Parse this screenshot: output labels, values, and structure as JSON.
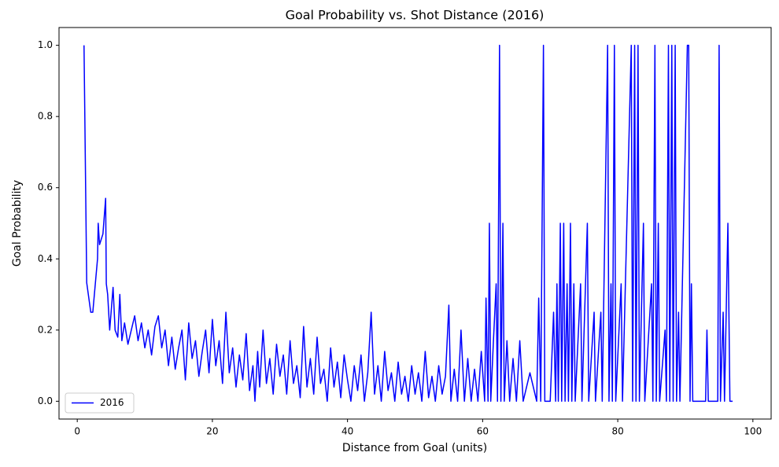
{
  "chart_data": {
    "type": "line",
    "title": "Goal Probability vs. Shot Distance (2016)",
    "xlabel": "Distance from Goal (units)",
    "ylabel": "Goal Probability",
    "xlim": [
      -2.7,
      102.7
    ],
    "ylim": [
      -0.05,
      1.05
    ],
    "xticks": [
      0,
      20,
      40,
      60,
      80,
      100
    ],
    "yticks": [
      {
        "value": 0,
        "label": "0.0"
      },
      0.2,
      0.4,
      0.6,
      0.8,
      {
        "value": 1,
        "label": "1.0"
      }
    ],
    "legend": "lower left",
    "grid": false,
    "x": [
      1,
      1.4,
      2,
      2.3,
      3,
      3.1,
      3.3,
      3.8,
      4.2,
      4.3,
      4.5,
      4.8,
      5.3,
      5.6,
      6,
      6.3,
      6.6,
      7,
      7.5,
      8,
      8.5,
      9,
      9.5,
      10,
      10.5,
      11,
      11.5,
      12,
      12.5,
      13,
      13.5,
      14,
      14.5,
      15,
      15.5,
      16,
      16.5,
      17,
      17.5,
      18,
      18.5,
      19,
      19.5,
      20,
      20.5,
      21,
      21.5,
      22,
      22.5,
      23,
      23.5,
      24,
      24.5,
      25,
      25.5,
      26,
      26.3,
      26.7,
      27,
      27.5,
      28,
      28.5,
      29,
      29.5,
      30,
      30.5,
      31,
      31.5,
      32,
      32.5,
      33,
      33.5,
      34,
      34.5,
      35,
      35.5,
      36,
      36.5,
      37,
      37.5,
      38,
      38.5,
      39,
      39.5,
      40,
      40.5,
      41,
      41.5,
      42,
      42.5,
      43,
      43.5,
      44,
      44.5,
      45,
      45.5,
      46,
      46.5,
      47,
      47.5,
      48,
      48.5,
      49,
      49.5,
      50,
      50.5,
      51,
      51.5,
      52,
      52.5,
      53,
      53.5,
      54,
      54.5,
      55,
      55.3,
      55.8,
      56.3,
      56.8,
      57.3,
      57.8,
      58.3,
      58.8,
      59.3,
      59.8,
      60.3,
      60.5,
      60.8,
      61,
      61.2,
      61.6,
      62,
      62.2,
      62.5,
      62.7,
      63,
      63.2,
      63.6,
      64,
      64.5,
      65,
      65.5,
      66,
      67,
      68,
      68.3,
      68.6,
      69,
      69.2,
      70,
      70.5,
      70.8,
      71,
      71.2,
      71.5,
      71.7,
      72,
      72.2,
      72.5,
      72.7,
      73,
      73.2,
      73.5,
      73.7,
      74.5,
      74.7,
      75.5,
      75.7,
      76.5,
      76.7,
      77.5,
      77.7,
      78.5,
      78.7,
      79,
      79.2,
      79.5,
      79.7,
      80.5,
      80.7,
      82,
      82.2,
      82.5,
      82.7,
      83,
      83.2,
      83.8,
      84,
      85,
      85.2,
      85.5,
      85.7,
      86,
      86.2,
      87,
      87.2,
      87.5,
      87.7,
      88,
      88.2,
      88.5,
      88.7,
      89,
      89.2,
      90.3,
      90.5,
      90.7,
      90.9,
      91.1,
      93,
      93.2,
      93.4,
      94.8,
      95,
      95.2,
      95.6,
      95.8,
      96.3,
      96.6,
      97
    ],
    "series": [
      {
        "name": "2016",
        "color": "#0000ff",
        "values": [
          1,
          0.333,
          0.25,
          0.25,
          0.4,
          0.5,
          0.44,
          0.47,
          0.57,
          0.33,
          0.3,
          0.2,
          0.32,
          0.2,
          0.18,
          0.3,
          0.17,
          0.22,
          0.16,
          0.2,
          0.24,
          0.17,
          0.22,
          0.15,
          0.2,
          0.13,
          0.21,
          0.24,
          0.15,
          0.2,
          0.1,
          0.18,
          0.09,
          0.15,
          0.2,
          0.06,
          0.22,
          0.12,
          0.17,
          0.07,
          0.14,
          0.2,
          0.08,
          0.23,
          0.1,
          0.17,
          0.05,
          0.25,
          0.08,
          0.15,
          0.04,
          0.13,
          0.06,
          0.19,
          0.03,
          0.1,
          0,
          0.14,
          0.04,
          0.2,
          0.05,
          0.12,
          0.02,
          0.16,
          0.07,
          0.13,
          0.02,
          0.17,
          0.05,
          0.1,
          0.01,
          0.21,
          0.04,
          0.12,
          0.02,
          0.18,
          0.05,
          0.09,
          0,
          0.15,
          0.04,
          0.11,
          0.01,
          0.13,
          0.06,
          0,
          0.1,
          0.03,
          0.13,
          0,
          0.08,
          0.25,
          0.02,
          0.1,
          0,
          0.14,
          0.03,
          0.08,
          0,
          0.11,
          0.02,
          0.07,
          0,
          0.1,
          0.02,
          0.08,
          0,
          0.14,
          0.01,
          0.07,
          0,
          0.1,
          0.02,
          0.07,
          0.27,
          0,
          0.09,
          0,
          0.2,
          0,
          0.12,
          0,
          0.09,
          0,
          0.14,
          0,
          0.29,
          0,
          0.5,
          0,
          0.17,
          0.33,
          0,
          1,
          0,
          0.5,
          0,
          0.17,
          0,
          0.12,
          0,
          0.17,
          0,
          0.08,
          0,
          0.29,
          0,
          1,
          0,
          0,
          0.25,
          0,
          0.33,
          0,
          0.5,
          0,
          0.5,
          0,
          0.33,
          0,
          0.5,
          0,
          0.33,
          0,
          0.33,
          0,
          0.5,
          0,
          0.25,
          0,
          0.25,
          0,
          1,
          0,
          0.33,
          0,
          1,
          0,
          0.33,
          0,
          1,
          0,
          1,
          0,
          1,
          0,
          0.5,
          0,
          0.33,
          0,
          1,
          0,
          0.5,
          0,
          0.2,
          0,
          1,
          0,
          1,
          0,
          1,
          0,
          0.25,
          0,
          1,
          1,
          0,
          0.33,
          0,
          0,
          0.2,
          0,
          0,
          1,
          0,
          0.25,
          0,
          0.5,
          0,
          0
        ]
      }
    ]
  }
}
